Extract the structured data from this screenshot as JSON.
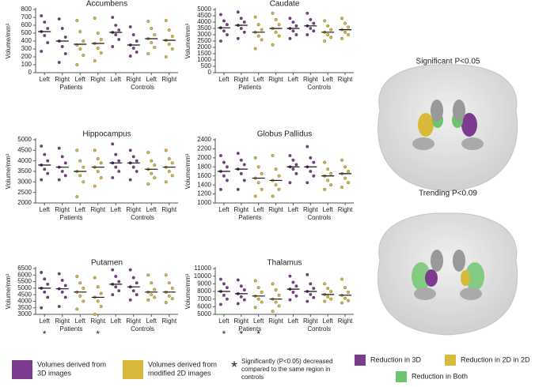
{
  "chart_data": [
    {
      "type": "strip",
      "title": "Accumbens",
      "ylabel": "Volume/mm³",
      "categories": [
        "Left",
        "Right",
        "Left",
        "Right",
        "Left",
        "Right",
        "Left",
        "Right"
      ],
      "group_labels": [
        "Patients",
        "Controls"
      ],
      "colors": [
        "#7d3b8f",
        "#7d3b8f",
        "#d9b93a",
        "#d9b93a",
        "#7d3b8f",
        "#7d3b8f",
        "#d9b93a",
        "#d9b93a"
      ],
      "points": [
        [
          720,
          640,
          560,
          520,
          470,
          380,
          270
        ],
        [
          680,
          560,
          450,
          400,
          330,
          240,
          130
        ],
        [
          660,
          520,
          400,
          350,
          300,
          220,
          100
        ],
        [
          690,
          500,
          420,
          370,
          310,
          250,
          150
        ],
        [
          700,
          600,
          540,
          510,
          480,
          420,
          330
        ],
        [
          580,
          480,
          400,
          350,
          310,
          260,
          210
        ],
        [
          650,
          560,
          480,
          430,
          380,
          320,
          240
        ],
        [
          660,
          540,
          460,
          410,
          360,
          300,
          200
        ]
      ],
      "means": [
        520,
        400,
        360,
        370,
        510,
        350,
        430,
        410
      ],
      "ylim": [
        0,
        800
      ],
      "yticks": [
        0,
        100,
        200,
        300,
        400,
        500,
        600,
        700,
        800
      ]
    },
    {
      "type": "strip",
      "title": "Caudate",
      "ylabel": "Volume/mm³",
      "categories": [
        "Left",
        "Right",
        "Left",
        "Right",
        "Left",
        "Right",
        "Left",
        "Right"
      ],
      "group_labels": [
        "Patients",
        "Controls"
      ],
      "colors": [
        "#7d3b8f",
        "#7d3b8f",
        "#d9b93a",
        "#d9b93a",
        "#7d3b8f",
        "#7d3b8f",
        "#d9b93a",
        "#d9b93a"
      ],
      "points": [
        [
          4600,
          4100,
          3800,
          3550,
          3300,
          3000,
          2500
        ],
        [
          4800,
          4300,
          4000,
          3750,
          3500,
          3200,
          2700
        ],
        [
          4400,
          3800,
          3400,
          3200,
          2900,
          2600,
          1900
        ],
        [
          4700,
          4200,
          3800,
          3500,
          3200,
          2900,
          2200
        ],
        [
          4300,
          4000,
          3700,
          3500,
          3300,
          3000,
          2700
        ],
        [
          4700,
          4200,
          3900,
          3700,
          3500,
          3300,
          3000
        ],
        [
          4100,
          3700,
          3400,
          3200,
          3000,
          2800,
          2500
        ],
        [
          4300,
          3900,
          3600,
          3400,
          3200,
          3000,
          2700
        ]
      ],
      "means": [
        3550,
        3750,
        3200,
        3500,
        3500,
        3700,
        3200,
        3400
      ],
      "ylim": [
        0,
        5000
      ],
      "yticks": [
        0,
        500,
        1000,
        1500,
        2000,
        2500,
        3000,
        3500,
        4000,
        4500,
        5000
      ]
    },
    {
      "type": "strip",
      "title": "Hippocampus",
      "ylabel": "Volume/mm³",
      "categories": [
        "Left",
        "Right",
        "Left",
        "Right",
        "Left",
        "Right",
        "Left",
        "Right"
      ],
      "group_labels": [
        "Patients",
        "Controls"
      ],
      "colors": [
        "#7d3b8f",
        "#7d3b8f",
        "#d9b93a",
        "#d9b93a",
        "#7d3b8f",
        "#7d3b8f",
        "#d9b93a",
        "#d9b93a"
      ],
      "points": [
        [
          4700,
          4300,
          4000,
          3800,
          3600,
          3400,
          3100
        ],
        [
          4600,
          4200,
          3900,
          3700,
          3500,
          3300,
          3100
        ],
        [
          4500,
          4000,
          3700,
          3500,
          3300,
          3000,
          2300
        ],
        [
          4500,
          4100,
          3900,
          3700,
          3500,
          3200,
          2800
        ],
        [
          4800,
          4300,
          4000,
          3900,
          3700,
          3500,
          3200
        ],
        [
          4500,
          4200,
          4000,
          3900,
          3700,
          3500,
          3100
        ],
        [
          4400,
          4000,
          3800,
          3600,
          3400,
          3200,
          2900
        ],
        [
          4500,
          4100,
          3900,
          3700,
          3500,
          3300,
          3000
        ]
      ],
      "means": [
        3800,
        3700,
        3500,
        3700,
        3900,
        3900,
        3600,
        3700
      ],
      "ylim": [
        2000,
        5000
      ],
      "yticks": [
        2000,
        2500,
        3000,
        3500,
        4000,
        4500,
        5000
      ]
    },
    {
      "type": "strip",
      "title": "Globus Pallidus",
      "ylabel": "Volume/mm³",
      "categories": [
        "Left",
        "Right",
        "Left",
        "Right",
        "Left",
        "Right",
        "Left",
        "Right"
      ],
      "group_labels": [
        "Patients",
        "Controls"
      ],
      "colors": [
        "#7d3b8f",
        "#7d3b8f",
        "#d9b93a",
        "#d9b93a",
        "#7d3b8f",
        "#7d3b8f",
        "#d9b93a",
        "#d9b93a"
      ],
      "points": [
        [
          2050,
          1900,
          1800,
          1700,
          1600,
          1500,
          1300
        ],
        [
          2100,
          1950,
          1850,
          1750,
          1650,
          1500,
          1300
        ],
        [
          2000,
          1800,
          1650,
          1550,
          1450,
          1300,
          1150
        ],
        [
          2050,
          1750,
          1600,
          1500,
          1400,
          1300,
          1150
        ],
        [
          2050,
          1950,
          1850,
          1800,
          1750,
          1650,
          1450
        ],
        [
          2250,
          2000,
          1900,
          1800,
          1700,
          1600,
          1450
        ],
        [
          1900,
          1750,
          1650,
          1600,
          1500,
          1400,
          1300
        ],
        [
          1950,
          1800,
          1700,
          1650,
          1550,
          1450,
          1350
        ]
      ],
      "means": [
        1700,
        1750,
        1550,
        1500,
        1800,
        1800,
        1600,
        1650
      ],
      "ylim": [
        1000,
        2400
      ],
      "yticks": [
        1000,
        1200,
        1400,
        1600,
        1800,
        2000,
        2200,
        2400
      ]
    },
    {
      "type": "strip",
      "title": "Putamen",
      "ylabel": "Volume/mm³",
      "categories": [
        "Left",
        "Right",
        "Left",
        "Right",
        "Left",
        "Right",
        "Left",
        "Right"
      ],
      "group_labels": [
        "Patients",
        "Controls"
      ],
      "colors": [
        "#7d3b8f",
        "#7d3b8f",
        "#d9b93a",
        "#d9b93a",
        "#7d3b8f",
        "#7d3b8f",
        "#d9b93a",
        "#d9b93a"
      ],
      "points": [
        [
          6200,
          5700,
          5300,
          5000,
          4700,
          4300,
          3500
        ],
        [
          6100,
          5600,
          5200,
          4950,
          4700,
          4300,
          3600
        ],
        [
          5900,
          5400,
          5000,
          4700,
          4400,
          4000,
          3400
        ],
        [
          5800,
          5100,
          4600,
          4300,
          4000,
          3600,
          3000
        ],
        [
          6400,
          5900,
          5500,
          5300,
          5100,
          4800,
          4500
        ],
        [
          6400,
          5800,
          5400,
          5100,
          4800,
          4500,
          4100
        ],
        [
          6000,
          5400,
          4900,
          4700,
          4500,
          4300,
          4100
        ],
        [
          6000,
          5400,
          5000,
          4700,
          4400,
          4200,
          3900
        ]
      ],
      "means": [
        5000,
        4950,
        4700,
        4300,
        5300,
        5100,
        4700,
        4700
      ],
      "significance": [
        "*",
        null,
        null,
        "*",
        null,
        null,
        null,
        null
      ],
      "ylim": [
        3000,
        6500
      ],
      "yticks": [
        3000,
        3500,
        4000,
        4500,
        5000,
        5500,
        6000,
        6500
      ]
    },
    {
      "type": "strip",
      "title": "Thalamus",
      "ylabel": "Volume/mm³",
      "categories": [
        "Left",
        "Right",
        "Left",
        "Right",
        "Left",
        "Right",
        "Left",
        "Right"
      ],
      "group_labels": [
        "Patients",
        "Controls"
      ],
      "colors": [
        "#7d3b8f",
        "#7d3b8f",
        "#d9b93a",
        "#d9b93a",
        "#7d3b8f",
        "#7d3b8f",
        "#d9b93a",
        "#d9b93a"
      ],
      "points": [
        [
          9600,
          9000,
          8500,
          8000,
          7500,
          7000,
          6300
        ],
        [
          9500,
          8700,
          8200,
          7700,
          7300,
          6900,
          6400
        ],
        [
          9400,
          8500,
          7900,
          7400,
          7000,
          6600,
          5900
        ],
        [
          9000,
          8200,
          7500,
          7000,
          6600,
          6100,
          5400
        ],
        [
          10000,
          9200,
          8700,
          8300,
          7900,
          7400,
          6900
        ],
        [
          10200,
          9000,
          8400,
          8000,
          7600,
          7200,
          6700
        ],
        [
          9000,
          8400,
          8000,
          7600,
          7300,
          7000,
          6700
        ],
        [
          9600,
          8500,
          7900,
          7500,
          7100,
          6800,
          6500
        ]
      ],
      "means": [
        8000,
        7700,
        7400,
        7000,
        8300,
        8000,
        7600,
        7500
      ],
      "significance": [
        "*",
        "*",
        "*",
        null,
        null,
        null,
        null,
        null
      ],
      "ylim": [
        5000,
        11000
      ],
      "yticks": [
        5000,
        6000,
        7000,
        8000,
        9000,
        10000,
        11000
      ]
    }
  ],
  "legend": {
    "items": [
      {
        "color": "#7d3b8f",
        "label": [
          "Volumes derived from",
          "3D images"
        ]
      },
      {
        "color": "#d9b93a",
        "label": [
          "Volumes derived from",
          "modified 2D images"
        ]
      }
    ],
    "note_symbol": "*",
    "note": [
      "Significantly (P<0.05) decreased",
      "compared to the same region in",
      "controls"
    ]
  },
  "brain_panels": [
    {
      "title": "Significant P<0.05"
    },
    {
      "title": "Trending P<0.09"
    }
  ],
  "brain_legend": [
    {
      "color": "#7d3b8f",
      "label": "Reduction in 3D"
    },
    {
      "color": "#d9b93a",
      "label": "Reduction in 2D in 2D"
    },
    {
      "color": "#6cc46c",
      "label": "Reduction in Both"
    }
  ]
}
